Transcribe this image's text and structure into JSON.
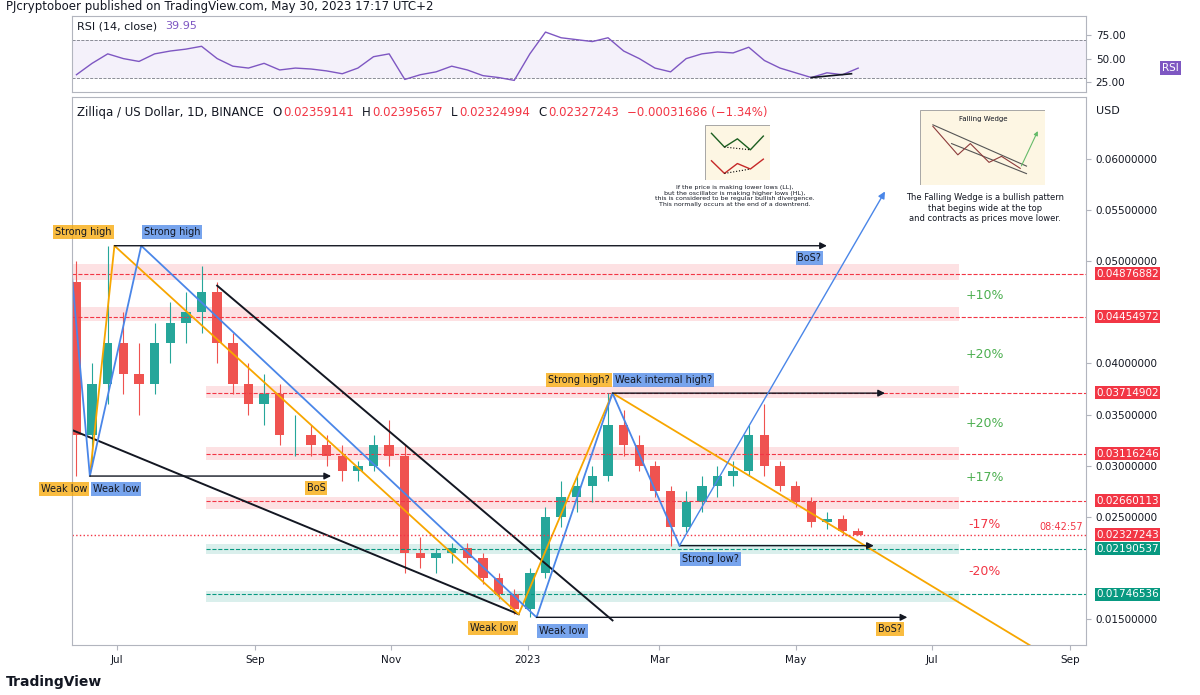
{
  "header": {
    "published": "PJcryptoboer published on TradingView.com, May 30, 2023 17:17 UTC+2"
  },
  "footer": "TradingView",
  "chart_data": [
    {
      "type": "line",
      "title": "RSI (14, close)",
      "badge": "RSI",
      "color": "#7e57c2",
      "grid": false,
      "tick_labels": "y",
      "x": [
        "2022-06-13",
        "2022-06-20",
        "2022-06-27",
        "2022-07-04",
        "2022-07-11",
        "2022-07-18",
        "2022-07-25",
        "2022-08-01",
        "2022-08-08",
        "2022-08-15",
        "2022-08-22",
        "2022-08-29",
        "2022-09-05",
        "2022-09-12",
        "2022-09-19",
        "2022-09-26",
        "2022-10-03",
        "2022-10-10",
        "2022-10-17",
        "2022-10-24",
        "2022-10-31",
        "2022-11-07",
        "2022-11-14",
        "2022-11-21",
        "2022-11-28",
        "2022-12-05",
        "2022-12-12",
        "2022-12-19",
        "2022-12-26",
        "2023-01-02",
        "2023-01-09",
        "2023-01-16",
        "2023-01-23",
        "2023-01-30",
        "2023-02-06",
        "2023-02-13",
        "2023-02-20",
        "2023-02-27",
        "2023-03-06",
        "2023-03-13",
        "2023-03-20",
        "2023-03-27",
        "2023-04-03",
        "2023-04-10",
        "2023-04-17",
        "2023-04-24",
        "2023-05-01",
        "2023-05-08",
        "2023-05-15",
        "2023-05-22",
        "2023-05-29"
      ],
      "values": [
        33,
        45,
        55,
        50,
        47,
        55,
        58,
        60,
        63,
        50,
        42,
        40,
        45,
        38,
        40,
        39,
        37,
        34,
        40,
        52,
        55,
        28,
        33,
        36,
        42,
        38,
        32,
        30,
        27,
        55,
        78,
        72,
        70,
        68,
        72,
        58,
        50,
        40,
        36,
        50,
        55,
        57,
        56,
        62,
        48,
        40,
        35,
        30,
        35,
        33,
        39.95
      ],
      "band": [
        30,
        70
      ],
      "divergence": {
        "x": [
          "2023-05-08",
          "2023-05-26"
        ],
        "values": [
          30,
          34
        ],
        "color": "#131722"
      },
      "xlim": [
        "2022-06-11",
        "2023-09-08"
      ],
      "ylim": [
        15,
        95
      ],
      "yticks": [
        {
          "value": 25,
          "label": "25.00"
        },
        {
          "value": 50,
          "label": "50.00"
        },
        {
          "value": 75,
          "label": "75.00"
        }
      ]
    },
    {
      "type": "candlestick",
      "title": "Zilliqa / US Dollar, 1D, BINANCE",
      "ylabel": "USD",
      "grid": false,
      "ohlc_labels": [
        "O",
        "H",
        "L",
        "C"
      ],
      "change": "−0.00031686 (−1.34%)",
      "countdown": "08:42:57",
      "color": "#f23645",
      "x": [
        "2022-06-13",
        "2022-06-20",
        "2022-06-27",
        "2022-07-04",
        "2022-07-11",
        "2022-07-18",
        "2022-07-25",
        "2022-08-01",
        "2022-08-08",
        "2022-08-15",
        "2022-08-22",
        "2022-08-29",
        "2022-09-05",
        "2022-09-12",
        "2022-09-19",
        "2022-09-26",
        "2022-10-03",
        "2022-10-10",
        "2022-10-17",
        "2022-10-24",
        "2022-10-31",
        "2022-11-07",
        "2022-11-14",
        "2022-11-21",
        "2022-11-28",
        "2022-12-05",
        "2022-12-12",
        "2022-12-19",
        "2022-12-26",
        "2023-01-02",
        "2023-01-09",
        "2023-01-16",
        "2023-01-23",
        "2023-01-30",
        "2023-02-06",
        "2023-02-13",
        "2023-02-20",
        "2023-02-27",
        "2023-03-06",
        "2023-03-13",
        "2023-03-20",
        "2023-03-27",
        "2023-04-03",
        "2023-04-10",
        "2023-04-17",
        "2023-04-24",
        "2023-05-01",
        "2023-05-08",
        "2023-05-15",
        "2023-05-22",
        "2023-05-29"
      ],
      "open": [
        0.048,
        0.033,
        0.038,
        0.042,
        0.039,
        0.038,
        0.042,
        0.044,
        0.045,
        0.047,
        0.042,
        0.038,
        0.036,
        0.037,
        0.033,
        0.033,
        0.032,
        0.031,
        0.0295,
        0.03,
        0.032,
        0.031,
        0.0215,
        0.021,
        0.0215,
        0.022,
        0.021,
        0.019,
        0.0175,
        0.016,
        0.0195,
        0.025,
        0.027,
        0.028,
        0.029,
        0.034,
        0.032,
        0.03,
        0.0275,
        0.024,
        0.0265,
        0.028,
        0.029,
        0.0295,
        0.033,
        0.03,
        0.028,
        0.0265,
        0.0245,
        0.0248,
        0.02359141
      ],
      "high": [
        0.05,
        0.04,
        0.0515,
        0.045,
        0.042,
        0.044,
        0.046,
        0.047,
        0.0495,
        0.048,
        0.043,
        0.04,
        0.039,
        0.038,
        0.035,
        0.034,
        0.033,
        0.032,
        0.0305,
        0.033,
        0.0345,
        0.032,
        0.023,
        0.022,
        0.0225,
        0.0225,
        0.0215,
        0.0195,
        0.018,
        0.02,
        0.026,
        0.0285,
        0.029,
        0.03,
        0.0371,
        0.0355,
        0.033,
        0.0305,
        0.028,
        0.0275,
        0.029,
        0.03,
        0.0305,
        0.034,
        0.036,
        0.0305,
        0.0285,
        0.027,
        0.0255,
        0.0252,
        0.02395657
      ],
      "low": [
        0.029,
        0.03,
        0.036,
        0.037,
        0.035,
        0.037,
        0.04,
        0.042,
        0.043,
        0.04,
        0.037,
        0.035,
        0.034,
        0.032,
        0.031,
        0.031,
        0.03,
        0.0285,
        0.0285,
        0.0295,
        0.03,
        0.0195,
        0.02,
        0.0195,
        0.0205,
        0.0205,
        0.0185,
        0.017,
        0.0155,
        0.0152,
        0.019,
        0.024,
        0.0255,
        0.0265,
        0.0285,
        0.031,
        0.0295,
        0.027,
        0.0222,
        0.0235,
        0.0255,
        0.027,
        0.028,
        0.029,
        0.029,
        0.0275,
        0.026,
        0.024,
        0.0238,
        0.0232,
        0.02324994
      ],
      "close": [
        0.033,
        0.038,
        0.042,
        0.039,
        0.038,
        0.042,
        0.044,
        0.045,
        0.047,
        0.042,
        0.038,
        0.036,
        0.037,
        0.033,
        0.033,
        0.032,
        0.031,
        0.0295,
        0.03,
        0.032,
        0.031,
        0.0215,
        0.021,
        0.0215,
        0.022,
        0.021,
        0.019,
        0.0175,
        0.016,
        0.0195,
        0.025,
        0.027,
        0.028,
        0.029,
        0.034,
        0.032,
        0.03,
        0.0275,
        0.024,
        0.0265,
        0.028,
        0.029,
        0.0295,
        0.033,
        0.03,
        0.028,
        0.0265,
        0.0245,
        0.0248,
        0.0236,
        0.02327243
      ],
      "xlim": [
        "2022-06-11",
        "2023-09-08"
      ],
      "ylim": [
        0.0125,
        0.066
      ],
      "xticks": [
        {
          "value": "2022-07-01",
          "label": "Jul"
        },
        {
          "value": "2022-09-01",
          "label": "Sep"
        },
        {
          "value": "2022-11-01",
          "label": "Nov"
        },
        {
          "value": "2023-01-01",
          "label": "2023"
        },
        {
          "value": "2023-03-01",
          "label": "Mar"
        },
        {
          "value": "2023-05-01",
          "label": "May"
        },
        {
          "value": "2023-07-01",
          "label": "Jul"
        },
        {
          "value": "2023-09-01",
          "label": "Sep"
        }
      ],
      "yticks": [
        {
          "value": 0.015,
          "label": "0.01500000"
        },
        {
          "value": 0.025,
          "label": "0.02500000"
        },
        {
          "value": 0.03,
          "label": "0.03000000"
        },
        {
          "value": 0.035,
          "label": "0.03500000"
        },
        {
          "value": 0.04,
          "label": "0.04000000"
        },
        {
          "value": 0.05,
          "label": "0.05000000"
        },
        {
          "value": 0.055,
          "label": "0.05500000"
        },
        {
          "value": 0.06,
          "label": "0.06000000"
        }
      ],
      "levels": [
        {
          "value": 0.04876882,
          "low": 0.0482,
          "high": 0.0497,
          "start": "2022-06-11",
          "end": "2023-07-13",
          "color": "#f23645",
          "move": "+10%",
          "move_color": "#4caf50"
        },
        {
          "value": 0.04454972,
          "low": 0.0441,
          "high": 0.0455,
          "start": "2022-06-11",
          "end": "2023-07-13",
          "color": "#f23645",
          "move": "+20%",
          "move_color": "#4caf50"
        },
        {
          "value": 0.03714902,
          "low": 0.0366,
          "high": 0.0378,
          "start": "2022-08-10",
          "end": "2023-07-13",
          "color": "#f23645",
          "move": "+20%",
          "move_color": "#4caf50"
        },
        {
          "value": 0.03116246,
          "low": 0.0306,
          "high": 0.0318,
          "start": "2022-08-10",
          "end": "2023-07-13",
          "color": "#f23645",
          "move": "+17%",
          "move_color": "#4caf50"
        },
        {
          "value": 0.02660113,
          "low": 0.0258,
          "high": 0.027,
          "start": "2022-08-10",
          "end": "2023-07-13",
          "color": "#f23645",
          "move": "-17%",
          "move_color": "#f23645"
        },
        {
          "value": 0.02190537,
          "low": 0.0214,
          "high": 0.0224,
          "start": "2022-08-10",
          "end": "2023-07-13",
          "color": "#089981",
          "move": "-20%",
          "move_color": "#f23645"
        },
        {
          "value": 0.01746536,
          "low": 0.0167,
          "high": 0.0178,
          "start": "2022-08-10",
          "end": "2023-07-13",
          "color": "#089981"
        }
      ],
      "paths": [
        {
          "color": "#f7a600",
          "x": [
            "2022-06-19",
            "2022-06-30",
            "2022-12-28",
            "2023-02-08",
            "2023-08-25"
          ],
          "y": [
            0.029,
            0.0515,
            0.0155,
            0.0371,
            0.011
          ],
          "labels": [
            "Weak low",
            "Strong high",
            "Weak low",
            "Strong high?",
            null
          ]
        },
        {
          "color": "#4a86e8",
          "x": [
            "2022-06-11",
            "2022-06-19",
            "2022-07-12",
            "2023-01-05",
            "2023-02-08",
            "2023-03-10"
          ],
          "y": [
            0.0485,
            0.029,
            0.0515,
            0.0152,
            0.0371,
            0.0222
          ],
          "labels": [
            null,
            "Weak low",
            "Strong high",
            "Weak low",
            "Weak internal high?",
            "Strong low?"
          ]
        }
      ],
      "lines": [
        {
          "color": "#131722",
          "x": [
            "2022-08-15",
            "2023-02-08"
          ],
          "y": [
            0.0476,
            0.0149
          ]
        },
        {
          "color": "#131722",
          "x": [
            "2022-06-11",
            "2022-12-28"
          ],
          "y": [
            0.0335,
            0.0155
          ]
        }
      ],
      "arrows": [
        {
          "color": "#131722",
          "x": [
            "2022-06-30",
            "2023-05-15"
          ],
          "y": [
            0.0515,
            0.0515
          ],
          "label": "BoS?",
          "label_color": "#4a86e8"
        },
        {
          "color": "#131722",
          "x": [
            "2023-02-08",
            "2023-06-10"
          ],
          "y": [
            0.0371,
            0.0371
          ]
        },
        {
          "color": "#131722",
          "x": [
            "2022-06-19",
            "2022-10-05"
          ],
          "y": [
            0.029,
            0.029
          ],
          "label": "BoS",
          "label_color": "#f7a600"
        },
        {
          "color": "#131722",
          "x": [
            "2023-03-10",
            "2023-06-05"
          ],
          "y": [
            0.0222,
            0.0222
          ]
        },
        {
          "color": "#131722",
          "x": [
            "2023-01-05",
            "2023-06-20"
          ],
          "y": [
            0.0152,
            0.0152
          ],
          "label": "BoS?",
          "label_color": "#f7a600"
        },
        {
          "color": "#4a86e8",
          "x": [
            "2023-03-10",
            "2023-06-10"
          ],
          "y": [
            0.0222,
            0.0568
          ]
        }
      ],
      "insets": [
        {
          "caption": [
            "If the price is making lower lows (LL),",
            "but the oscillator is making higher lows (HL),",
            "this is considered to be regular bullish divergence.",
            "This normally occurs at the end of a downtrend."
          ]
        },
        {
          "title": "Falling Wedge",
          "caption": [
            "The Falling Wedge is a bullish pattern",
            "that begins wide at the top",
            "and contracts as prices move lower."
          ]
        }
      ]
    }
  ]
}
